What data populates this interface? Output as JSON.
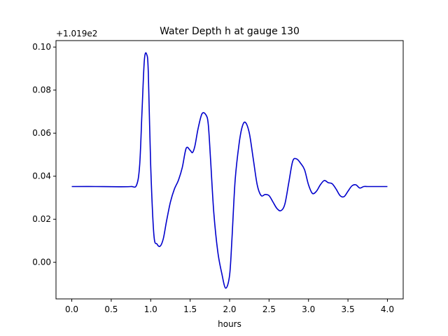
{
  "chart_data": {
    "type": "line",
    "title": "Water Depth h at gauge 130",
    "xlabel": "hours",
    "ylabel": "",
    "y_offset_label": "+1.019e2",
    "xlim": [
      -0.2,
      4.2
    ],
    "ylim": [
      -0.017,
      0.103
    ],
    "x_ticks": [
      0.0,
      0.5,
      1.0,
      1.5,
      2.0,
      2.5,
      3.0,
      3.5,
      4.0
    ],
    "x_tick_labels": [
      "0.0",
      "0.5",
      "1.0",
      "1.5",
      "2.0",
      "2.5",
      "3.0",
      "3.5",
      "4.0"
    ],
    "y_ticks": [
      0.0,
      0.02,
      0.04,
      0.06,
      0.08,
      0.1
    ],
    "y_tick_labels": [
      "0.00",
      "0.02",
      "0.04",
      "0.06",
      "0.08",
      "0.10"
    ],
    "grid": false,
    "line_color": "#0000cc",
    "series": [
      {
        "x": [
          0.0,
          0.3,
          0.6,
          0.75,
          0.82,
          0.86,
          0.89,
          0.92,
          0.95,
          0.97,
          1.0,
          1.04,
          1.08,
          1.12,
          1.16,
          1.2,
          1.25,
          1.3,
          1.35,
          1.4,
          1.45,
          1.5,
          1.53,
          1.56,
          1.6,
          1.65,
          1.7,
          1.73,
          1.76,
          1.8,
          1.85,
          1.9,
          1.95,
          2.0,
          2.03,
          2.07,
          2.12,
          2.16,
          2.2,
          2.25,
          2.3,
          2.35,
          2.4,
          2.45,
          2.5,
          2.55,
          2.6,
          2.65,
          2.7,
          2.75,
          2.8,
          2.85,
          2.9,
          2.95,
          3.0,
          3.05,
          3.1,
          3.15,
          3.2,
          3.25,
          3.3,
          3.35,
          3.4,
          3.45,
          3.5,
          3.55,
          3.6,
          3.65,
          3.7,
          3.75,
          3.8,
          3.85,
          3.9,
          3.95,
          4.0
        ],
        "values": [
          0.0352,
          0.0352,
          0.0351,
          0.0352,
          0.0358,
          0.045,
          0.07,
          0.094,
          0.0965,
          0.088,
          0.045,
          0.013,
          0.0085,
          0.0075,
          0.011,
          0.019,
          0.028,
          0.034,
          0.038,
          0.044,
          0.053,
          0.052,
          0.051,
          0.054,
          0.062,
          0.069,
          0.0685,
          0.064,
          0.047,
          0.023,
          0.005,
          -0.005,
          -0.012,
          -0.006,
          0.011,
          0.038,
          0.055,
          0.063,
          0.065,
          0.06,
          0.048,
          0.036,
          0.031,
          0.0315,
          0.031,
          0.028,
          0.025,
          0.024,
          0.027,
          0.037,
          0.047,
          0.048,
          0.046,
          0.043,
          0.036,
          0.032,
          0.033,
          0.036,
          0.038,
          0.037,
          0.0365,
          0.034,
          0.031,
          0.0305,
          0.033,
          0.0355,
          0.036,
          0.0345,
          0.0352,
          0.0352,
          0.0352,
          0.0352,
          0.0352,
          0.0352,
          0.0352
        ]
      }
    ]
  }
}
